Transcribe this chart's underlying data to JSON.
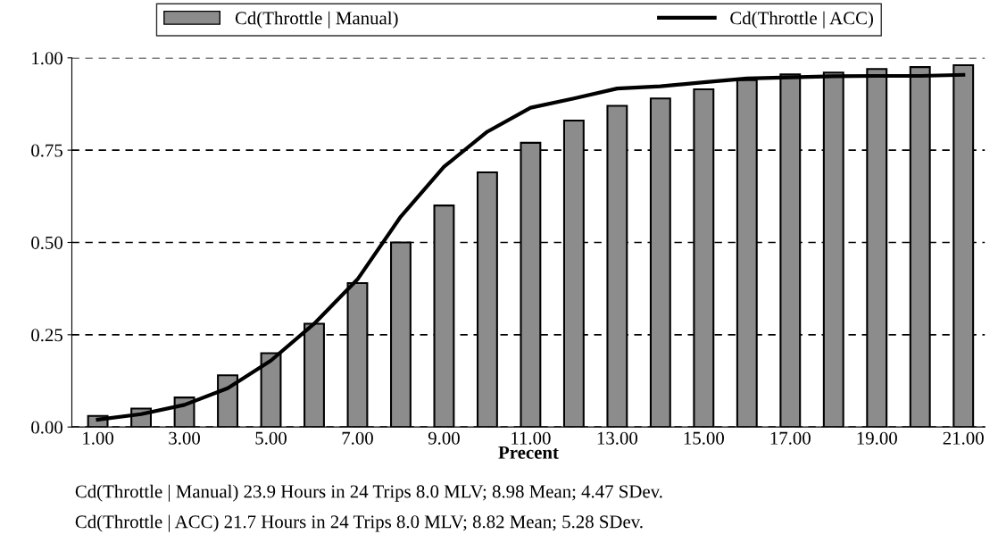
{
  "chart_data": {
    "type": "bar",
    "categories": [
      "1.00",
      null,
      "3.00",
      null,
      "5.00",
      null,
      "7.00",
      null,
      "9.00",
      null,
      "11.00",
      null,
      "13.00",
      null,
      "15.00",
      null,
      "17.00",
      null,
      "19.00",
      null,
      "21.00"
    ],
    "series": [
      {
        "name": "Cd(Throttle | Manual)",
        "color": "#8c8c8c",
        "values": [
          0.03,
          0.05,
          0.08,
          0.14,
          0.2,
          0.28,
          0.39,
          0.5,
          0.6,
          0.69,
          0.77,
          0.83,
          0.87,
          0.89,
          0.915,
          0.94,
          0.955,
          0.96,
          0.97,
          0.975,
          0.98
        ]
      },
      {
        "name": "Cd(Throttle | ACC)",
        "type": "line",
        "color": "#000000",
        "values": [
          0.02,
          0.035,
          0.06,
          0.105,
          0.18,
          0.28,
          0.4,
          0.57,
          0.705,
          0.8,
          0.865,
          0.89,
          0.917,
          0.923,
          0.934,
          0.944,
          0.947,
          0.95,
          0.951,
          0.951,
          0.954
        ]
      }
    ],
    "xlabel": "Precent",
    "ylim": [
      0,
      1
    ],
    "yticks": [
      {
        "value": 0,
        "label": "0.00"
      },
      {
        "value": 0.25,
        "label": "0.25"
      },
      {
        "value": 0.5,
        "label": "0.50"
      },
      {
        "value": 0.75,
        "label": "0.75"
      },
      {
        "value": 1,
        "label": "1.00"
      }
    ],
    "grid": "y",
    "legend": "top",
    "marker": "none",
    "line_style": "solid",
    "annotations": [
      "Cd(Throttle | Manual) 23.9 Hours in 24 Trips 8.0 MLV; 8.98 Mean; 4.47 SDev.",
      "Cd(Throttle | ACC) 21.7 Hours in 24 Trips 8.0 MLV; 8.82 Mean; 5.28 SDev."
    ]
  }
}
